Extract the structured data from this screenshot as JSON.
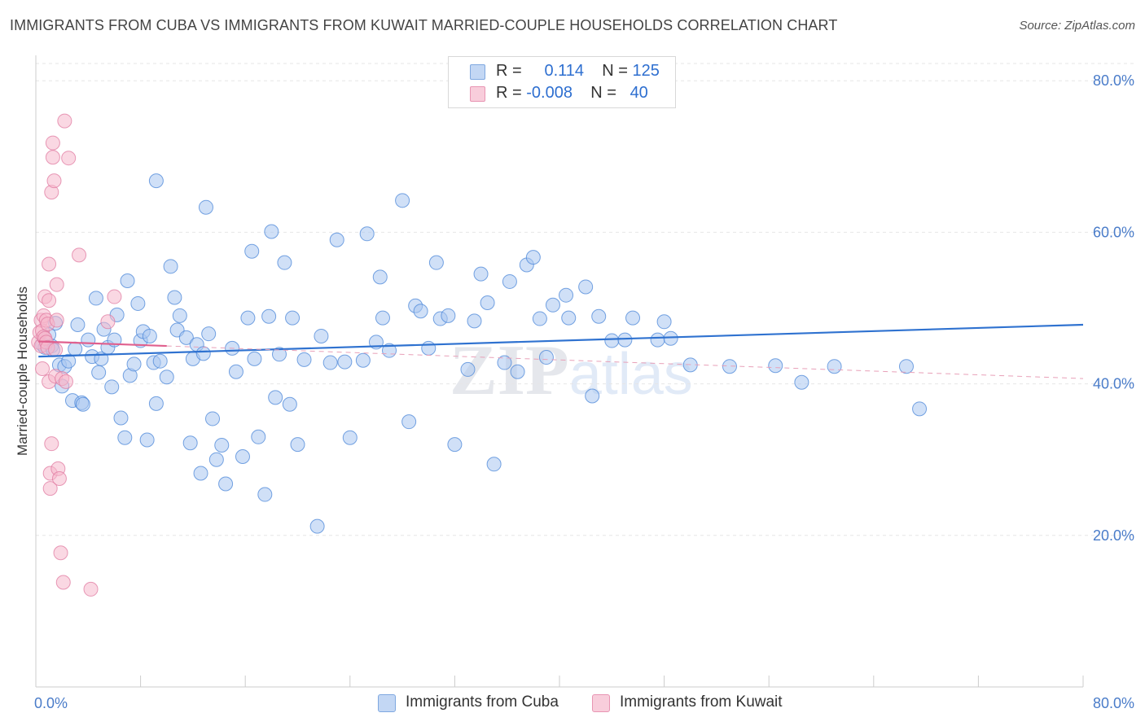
{
  "title": "IMMIGRANTS FROM CUBA VS IMMIGRANTS FROM KUWAIT MARRIED-COUPLE HOUSEHOLDS CORRELATION CHART",
  "source": "Source: ZipAtlas.com",
  "watermark": {
    "zip": "ZIP",
    "atlas": "atlas"
  },
  "legend": {
    "rows": [
      {
        "r_label": "R =",
        "r_value": "0.114",
        "n_label": "N =",
        "n_value": "125",
        "color": "#a9c6f0"
      },
      {
        "r_label": "R =",
        "r_value": "-0.008",
        "n_label": "N =",
        "n_value": "40",
        "color": "#f5b8cc"
      }
    ]
  },
  "bottom_legend": [
    {
      "label": "Immigrants from Cuba",
      "color": "#a9c6f0"
    },
    {
      "label": "Immigrants from Kuwait",
      "color": "#f5b8cc"
    }
  ],
  "chart_data": {
    "type": "scatter",
    "ylabel": "Married-couple Households",
    "xlim": [
      0,
      80
    ],
    "ylim": [
      0,
      84
    ],
    "x_ticks": [
      {
        "v": 0,
        "label": "0.0%"
      },
      {
        "v": 80,
        "label": "80.0%"
      }
    ],
    "y_ticks": [
      {
        "v": 20,
        "label": "20.0%"
      },
      {
        "v": 40,
        "label": "40.0%"
      },
      {
        "v": 60,
        "label": "60.0%"
      },
      {
        "v": 80,
        "label": "80.0%"
      }
    ],
    "grid": true,
    "series": [
      {
        "name": "Immigrants from Cuba",
        "color": "#4a86d8",
        "fill": "#a9c6f0",
        "trend": {
          "x0": 0.2,
          "y0": 43.6,
          "x1": 80,
          "y1": 47.8
        },
        "points": [
          [
            0.5,
            45.2
          ],
          [
            0.7,
            44.8
          ],
          [
            1.0,
            46.5
          ],
          [
            1.2,
            45.0
          ],
          [
            1.5,
            48.0
          ],
          [
            1.3,
            44.5
          ],
          [
            1.8,
            42.5
          ],
          [
            2.0,
            39.7
          ],
          [
            2.2,
            42.3
          ],
          [
            2.5,
            43.0
          ],
          [
            2.8,
            37.8
          ],
          [
            3.0,
            44.6
          ],
          [
            3.2,
            47.8
          ],
          [
            3.5,
            37.5
          ],
          [
            3.6,
            37.3
          ],
          [
            4.0,
            45.8
          ],
          [
            4.3,
            43.6
          ],
          [
            4.6,
            51.3
          ],
          [
            4.8,
            41.5
          ],
          [
            5.0,
            43.3
          ],
          [
            5.2,
            47.2
          ],
          [
            5.5,
            44.8
          ],
          [
            5.8,
            39.6
          ],
          [
            6.0,
            45.8
          ],
          [
            6.2,
            49.1
          ],
          [
            6.5,
            35.5
          ],
          [
            6.8,
            32.9
          ],
          [
            7.0,
            53.6
          ],
          [
            7.2,
            41.1
          ],
          [
            7.5,
            42.6
          ],
          [
            7.8,
            50.6
          ],
          [
            8.0,
            45.7
          ],
          [
            8.2,
            46.9
          ],
          [
            8.5,
            32.6
          ],
          [
            8.7,
            46.3
          ],
          [
            9.0,
            42.8
          ],
          [
            9.2,
            37.4
          ],
          [
            9.5,
            43.0
          ],
          [
            10.0,
            40.9
          ],
          [
            10.3,
            55.5
          ],
          [
            10.6,
            51.4
          ],
          [
            10.8,
            47.1
          ],
          [
            11.0,
            49.0
          ],
          [
            11.5,
            46.1
          ],
          [
            11.8,
            32.2
          ],
          [
            12.0,
            43.3
          ],
          [
            12.3,
            45.2
          ],
          [
            12.6,
            28.2
          ],
          [
            12.8,
            44.0
          ],
          [
            13.2,
            46.6
          ],
          [
            13.5,
            35.4
          ],
          [
            13.8,
            30.0
          ],
          [
            14.2,
            31.9
          ],
          [
            14.5,
            26.8
          ],
          [
            15.0,
            44.7
          ],
          [
            15.3,
            41.6
          ],
          [
            15.8,
            30.4
          ],
          [
            16.2,
            48.7
          ],
          [
            16.5,
            57.5
          ],
          [
            16.7,
            43.3
          ],
          [
            17.0,
            33.0
          ],
          [
            17.5,
            25.4
          ],
          [
            17.8,
            48.9
          ],
          [
            18.0,
            60.1
          ],
          [
            18.3,
            38.2
          ],
          [
            18.6,
            43.9
          ],
          [
            19.0,
            56.0
          ],
          [
            19.4,
            37.3
          ],
          [
            19.6,
            48.7
          ],
          [
            20.0,
            32.0
          ],
          [
            20.5,
            43.2
          ],
          [
            21.5,
            21.2
          ],
          [
            21.8,
            46.3
          ],
          [
            22.5,
            42.8
          ],
          [
            23.0,
            59.0
          ],
          [
            23.6,
            42.9
          ],
          [
            24.0,
            32.9
          ],
          [
            25.0,
            43.1
          ],
          [
            25.3,
            59.8
          ],
          [
            26.0,
            45.5
          ],
          [
            26.3,
            54.1
          ],
          [
            26.5,
            48.7
          ],
          [
            27.0,
            44.4
          ],
          [
            28.0,
            64.2
          ],
          [
            28.5,
            35.0
          ],
          [
            29.0,
            50.3
          ],
          [
            29.4,
            49.6
          ],
          [
            30.0,
            44.7
          ],
          [
            30.6,
            56.0
          ],
          [
            30.9,
            48.6
          ],
          [
            31.5,
            49.0
          ],
          [
            32.0,
            32.0
          ],
          [
            33.0,
            41.9
          ],
          [
            33.5,
            48.3
          ],
          [
            34.0,
            54.5
          ],
          [
            34.5,
            50.7
          ],
          [
            35.0,
            29.4
          ],
          [
            35.8,
            42.8
          ],
          [
            36.2,
            53.5
          ],
          [
            36.8,
            41.6
          ],
          [
            37.5,
            55.7
          ],
          [
            38.0,
            56.7
          ],
          [
            38.5,
            48.6
          ],
          [
            39.0,
            43.5
          ],
          [
            39.5,
            50.4
          ],
          [
            40.5,
            51.7
          ],
          [
            40.7,
            48.7
          ],
          [
            42.0,
            52.8
          ],
          [
            42.5,
            38.4
          ],
          [
            43.0,
            48.9
          ],
          [
            44.0,
            45.7
          ],
          [
            45.0,
            45.8
          ],
          [
            45.6,
            48.7
          ],
          [
            47.5,
            45.8
          ],
          [
            48.0,
            48.2
          ],
          [
            48.5,
            46.0
          ],
          [
            50.0,
            42.5
          ],
          [
            53.0,
            42.3
          ],
          [
            56.5,
            42.4
          ],
          [
            58.5,
            40.2
          ],
          [
            61.0,
            42.3
          ],
          [
            66.5,
            42.3
          ],
          [
            67.5,
            36.7
          ],
          [
            9.2,
            66.8
          ],
          [
            13.0,
            63.3
          ]
        ]
      },
      {
        "name": "Immigrants from Kuwait",
        "color": "#e07aa0",
        "fill": "#f5b8cc",
        "trend": {
          "x0": 0.2,
          "y0": 45.6,
          "x1": 10,
          "y1": 45.0
        },
        "trend_ext": {
          "x0": 10,
          "y0": 45.0,
          "x1": 80,
          "y1": 40.7
        },
        "points": [
          [
            0.2,
            45.5
          ],
          [
            0.3,
            46.8
          ],
          [
            0.4,
            45.0
          ],
          [
            0.4,
            48.4
          ],
          [
            0.5,
            47.0
          ],
          [
            0.5,
            42.0
          ],
          [
            0.6,
            46.2
          ],
          [
            0.6,
            49.0
          ],
          [
            0.7,
            51.5
          ],
          [
            0.7,
            46.0
          ],
          [
            0.8,
            48.4
          ],
          [
            0.8,
            45.5
          ],
          [
            0.9,
            44.8
          ],
          [
            0.9,
            47.9
          ],
          [
            1.0,
            55.8
          ],
          [
            1.0,
            51.0
          ],
          [
            1.0,
            40.3
          ],
          [
            1.1,
            28.2
          ],
          [
            1.1,
            26.2
          ],
          [
            1.2,
            32.1
          ],
          [
            1.2,
            65.3
          ],
          [
            1.3,
            69.9
          ],
          [
            1.3,
            71.8
          ],
          [
            1.4,
            66.8
          ],
          [
            1.5,
            41.0
          ],
          [
            1.5,
            44.5
          ],
          [
            1.6,
            53.1
          ],
          [
            1.6,
            48.4
          ],
          [
            1.7,
            28.8
          ],
          [
            1.8,
            27.5
          ],
          [
            1.9,
            17.7
          ],
          [
            2.0,
            40.7
          ],
          [
            2.1,
            13.8
          ],
          [
            2.2,
            74.7
          ],
          [
            2.3,
            40.3
          ],
          [
            2.5,
            69.8
          ],
          [
            3.3,
            57.0
          ],
          [
            4.2,
            12.9
          ],
          [
            5.5,
            48.2
          ],
          [
            6.0,
            51.5
          ]
        ]
      }
    ]
  }
}
